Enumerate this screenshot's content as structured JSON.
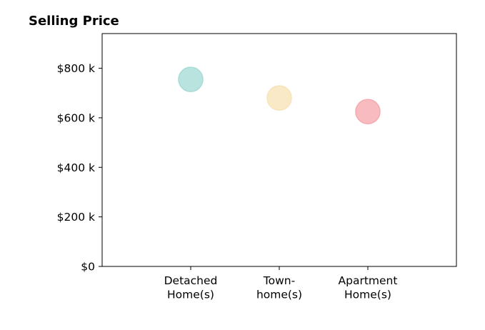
{
  "chart_data": {
    "type": "scatter",
    "title": "Selling Price",
    "xlabel": "",
    "ylabel": "",
    "categories": [
      [
        "Detached",
        "Home(s)"
      ],
      [
        "Town-",
        "home(s)"
      ],
      [
        "Apartment",
        "Home(s)"
      ]
    ],
    "values": [
      755000,
      680000,
      625000
    ],
    "colors": [
      "#a8dcd6",
      "#f8e3b8",
      "#f5aab0"
    ],
    "ylim": [
      0,
      940000
    ],
    "yticks": [
      0,
      200000,
      400000,
      600000,
      800000
    ],
    "ytick_labels": [
      "$0",
      "$200 k",
      "$400 k",
      "$600 k",
      "$800 k"
    ],
    "grid": false,
    "legend": "none"
  }
}
